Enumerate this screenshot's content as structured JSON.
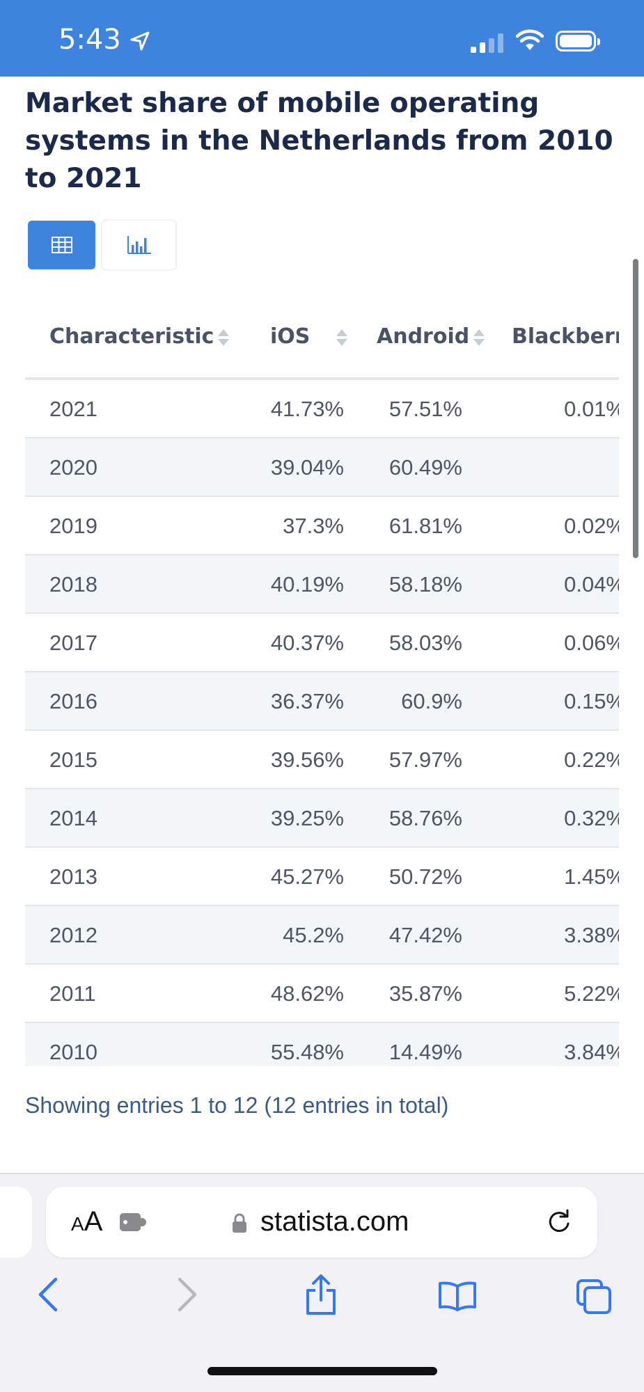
{
  "status_bar": {
    "time": "5:43"
  },
  "title": "Market share of mobile operating systems in the Netherlands from 2010 to 2021",
  "table": {
    "columns": [
      "Characteristic",
      "iOS",
      "Android",
      "Blackberry"
    ],
    "rows": [
      {
        "year": "2021",
        "ios": "41.73%",
        "android": "57.51%",
        "blackberry": "0.01%"
      },
      {
        "year": "2020",
        "ios": "39.04%",
        "android": "60.49%",
        "blackberry": ""
      },
      {
        "year": "2019",
        "ios": "37.3%",
        "android": "61.81%",
        "blackberry": "0.02%"
      },
      {
        "year": "2018",
        "ios": "40.19%",
        "android": "58.18%",
        "blackberry": "0.04%"
      },
      {
        "year": "2017",
        "ios": "40.37%",
        "android": "58.03%",
        "blackberry": "0.06%"
      },
      {
        "year": "2016",
        "ios": "36.37%",
        "android": "60.9%",
        "blackberry": "0.15%"
      },
      {
        "year": "2015",
        "ios": "39.56%",
        "android": "57.97%",
        "blackberry": "0.22%"
      },
      {
        "year": "2014",
        "ios": "39.25%",
        "android": "58.76%",
        "blackberry": "0.32%"
      },
      {
        "year": "2013",
        "ios": "45.27%",
        "android": "50.72%",
        "blackberry": "1.45%"
      },
      {
        "year": "2012",
        "ios": "45.2%",
        "android": "47.42%",
        "blackberry": "3.38%"
      },
      {
        "year": "2011",
        "ios": "48.62%",
        "android": "35.87%",
        "blackberry": "5.22%"
      },
      {
        "year": "2010",
        "ios": "55.48%",
        "android": "14.49%",
        "blackberry": "3.84%"
      }
    ]
  },
  "entries_text": "Showing entries 1 to 12 (12 entries in total)",
  "browser": {
    "text_size_label_small": "A",
    "text_size_label_large": "A",
    "url": "statista.com"
  },
  "colors": {
    "accent": "#3e83de",
    "heading": "#1b2a4a",
    "entries": "#3c5a87"
  }
}
